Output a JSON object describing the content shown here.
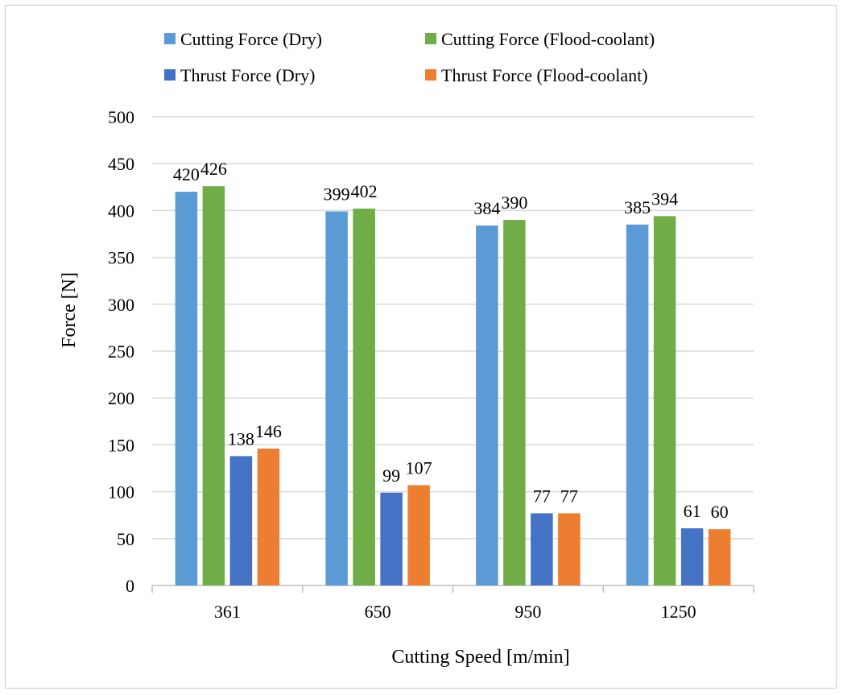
{
  "chart_data": {
    "type": "bar",
    "title": "",
    "xlabel": "Cutting Speed [m/min]",
    "ylabel": "Force [N]",
    "ylim": [
      0,
      500
    ],
    "ytick_step": 50,
    "yticks": [
      "0",
      "50",
      "100",
      "150",
      "200",
      "250",
      "300",
      "350",
      "400",
      "450",
      "500"
    ],
    "grid": true,
    "legend_position": "top",
    "categories": [
      "361",
      "650",
      "950",
      "1250"
    ],
    "series": [
      {
        "name": "Cutting Force (Dry)",
        "color": "#5b9bd5",
        "values": [
          420,
          399,
          384,
          385
        ],
        "labels": [
          "420",
          "399",
          "384",
          "385"
        ]
      },
      {
        "name": "Cutting Force (Flood-coolant)",
        "color": "#70ad47",
        "values": [
          426,
          402,
          390,
          394
        ],
        "labels": [
          "426",
          "402",
          "390",
          "394"
        ]
      },
      {
        "name": "Thrust Force (Dry)",
        "color": "#4472c4",
        "values": [
          138,
          99,
          77,
          61
        ],
        "labels": [
          "138",
          "99",
          "77",
          "61"
        ]
      },
      {
        "name": "Thrust Force (Flood-coolant)",
        "color": "#ed7d31",
        "values": [
          146,
          107,
          77,
          60
        ],
        "labels": [
          "146",
          "107",
          "77",
          "60"
        ]
      }
    ]
  }
}
